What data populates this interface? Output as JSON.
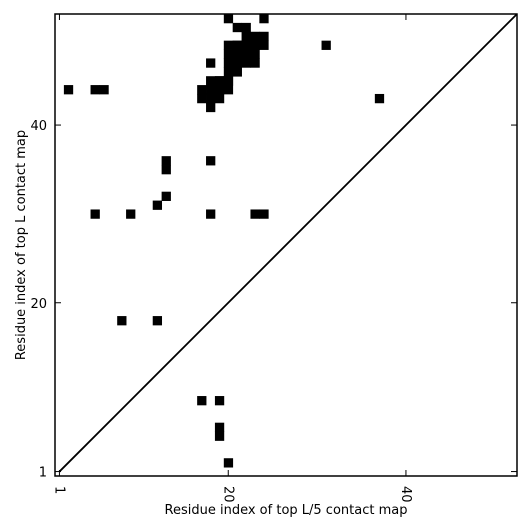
{
  "chart_data": {
    "type": "heatmap",
    "title": "",
    "xlabel": "Residue index of top L/5 contact map",
    "ylabel": "Residue index of top L contact map",
    "xlim": [
      0.5,
      52.5
    ],
    "ylim": [
      0.5,
      52.5
    ],
    "x_ticks": [
      {
        "value": 1,
        "label": "1"
      },
      {
        "value": 20,
        "label": "20"
      },
      {
        "value": 40,
        "label": "40"
      }
    ],
    "y_ticks": [
      {
        "value": 1,
        "label": "1"
      },
      {
        "value": 20,
        "label": "20"
      },
      {
        "value": 40,
        "label": "40"
      }
    ],
    "diagonal": true,
    "grid": false,
    "contacts_top_L": [
      [
        20,
        52
      ],
      [
        24,
        52
      ],
      [
        21,
        51
      ],
      [
        22,
        51
      ],
      [
        22,
        50
      ],
      [
        23,
        50
      ],
      [
        24,
        50
      ],
      [
        20,
        49
      ],
      [
        21,
        49
      ],
      [
        22,
        49
      ],
      [
        23,
        49
      ],
      [
        24,
        49
      ],
      [
        31,
        49
      ],
      [
        20,
        48
      ],
      [
        21,
        48
      ],
      [
        22,
        48
      ],
      [
        23,
        48
      ],
      [
        18,
        47
      ],
      [
        20,
        47
      ],
      [
        21,
        47
      ],
      [
        22,
        47
      ],
      [
        23,
        47
      ],
      [
        20,
        46
      ],
      [
        21,
        46
      ],
      [
        18,
        45
      ],
      [
        19,
        45
      ],
      [
        20,
        45
      ],
      [
        2,
        44
      ],
      [
        5,
        44
      ],
      [
        6,
        44
      ],
      [
        17,
        44
      ],
      [
        18,
        44
      ],
      [
        19,
        44
      ],
      [
        20,
        44
      ],
      [
        17,
        43
      ],
      [
        18,
        43
      ],
      [
        37,
        43
      ],
      [
        18,
        42
      ],
      [
        13,
        36
      ],
      [
        18,
        36
      ],
      [
        13,
        35
      ],
      [
        13,
        32
      ],
      [
        5,
        30
      ],
      [
        9,
        30
      ],
      [
        18,
        30
      ],
      [
        23,
        30
      ],
      [
        24,
        30
      ]
    ],
    "contacts_top_L5": [
      [
        20,
        2
      ],
      [
        19,
        5
      ],
      [
        19,
        6
      ],
      [
        19,
        9
      ],
      [
        17,
        9
      ],
      [
        20,
        45
      ],
      [
        19,
        43
      ],
      [
        19,
        44
      ],
      [
        19,
        45
      ],
      [
        21,
        49
      ],
      [
        22,
        49
      ],
      [
        23,
        49
      ],
      [
        12,
        18
      ],
      [
        12,
        31
      ],
      [
        8,
        18
      ]
    ]
  }
}
